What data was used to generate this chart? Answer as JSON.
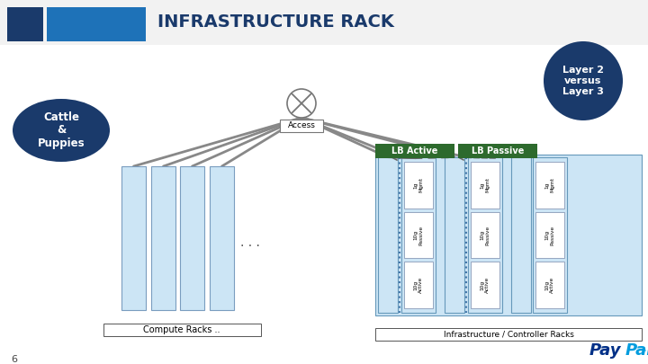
{
  "title": "INFRASTRUCTURE RACK",
  "bg_color": "#ffffff",
  "header_blue1": "#1a3a6b",
  "header_blue2": "#1e72b8",
  "light_blue": "#cce5f5",
  "dark_blue": "#1a3a6b",
  "cattle_text": "Cattle\n&\nPuppies",
  "access_text": "Access",
  "lb_active_text": "LB Active",
  "lb_passive_text": "LB Passive",
  "layer_text": "Layer 2\nversus\nLayer 3",
  "compute_label": "Compute Racks ..",
  "infra_label": "Infrastructure / Controller Racks",
  "page_num": "6",
  "rack_slot_labels": [
    "1g\nMgmt",
    "10g\nPassive",
    "10g\nActive"
  ]
}
